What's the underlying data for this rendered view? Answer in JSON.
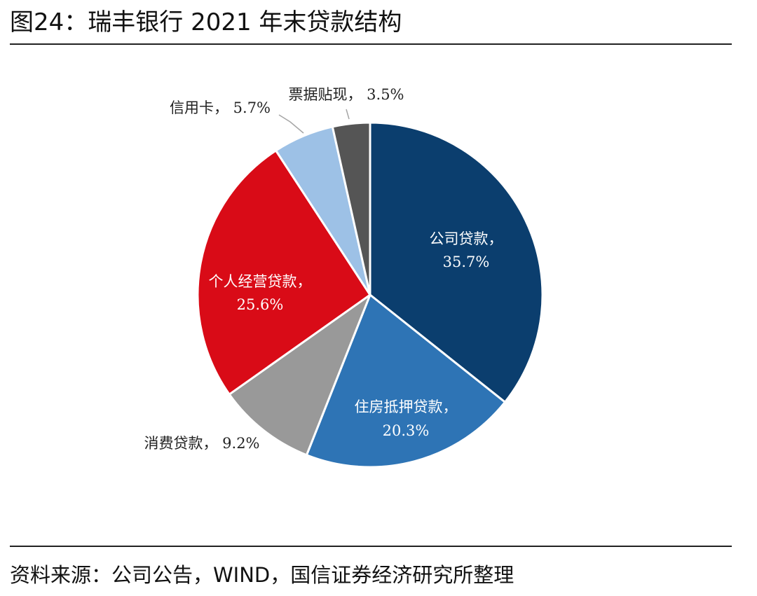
{
  "figure": {
    "title": "图24：瑞丰银行 2021 年末贷款结构",
    "source": "资料来源：公司公告，WIND，国信证券经济研究所整理"
  },
  "chart_data": {
    "type": "pie",
    "title": "",
    "start_angle": "12 o'clock",
    "direction": "clockwise",
    "legend": "none",
    "slices": [
      {
        "name": "公司贷款",
        "value": 35.7,
        "value_label": "35.7%",
        "color": "#0b3e6e",
        "label_position": "inside",
        "label_text_color": "#ffffff"
      },
      {
        "name": "住房抵押贷款",
        "value": 20.3,
        "value_label": "20.3%",
        "color": "#2e74b5",
        "label_position": "inside",
        "label_text_color": "#ffffff"
      },
      {
        "name": "消费贷款",
        "value": 9.2,
        "value_label": "9.2%",
        "color": "#999999",
        "label_position": "outside",
        "label_text_color": "#222222"
      },
      {
        "name": "个人经营贷款",
        "value": 25.6,
        "value_label": "25.6%",
        "color": "#d90b17",
        "label_position": "inside",
        "label_text_color": "#ffffff"
      },
      {
        "name": "信用卡",
        "value": 5.7,
        "value_label": "5.7%",
        "color": "#9dc1e6",
        "label_position": "outside",
        "label_text_color": "#222222"
      },
      {
        "name": "票据贴现",
        "value": 3.5,
        "value_label": "3.5%",
        "color": "#555555",
        "label_position": "outside",
        "label_text_color": "#222222"
      }
    ],
    "separator": "，"
  }
}
